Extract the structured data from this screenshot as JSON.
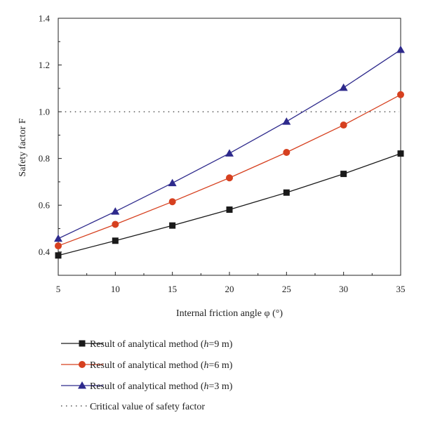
{
  "chart_data": {
    "type": "line",
    "xlabel": "Internal friction angle φ (°)",
    "ylabel": "Safety factor F",
    "xlim": [
      5,
      35
    ],
    "ylim": [
      0.3,
      1.4
    ],
    "xticks": [
      5,
      10,
      15,
      20,
      25,
      30,
      35
    ],
    "yticks": [
      0.4,
      0.6,
      0.8,
      1.0,
      1.2,
      1.4
    ],
    "ytick_labels": [
      "0.4",
      "0.6",
      "0.8",
      "1.0",
      "1.2",
      "1.4"
    ],
    "x": [
      5,
      10,
      15,
      20,
      25,
      30,
      35
    ],
    "series": [
      {
        "name_prefix": "Result of analytical method (",
        "name_var": "h",
        "name_suffix": "=9 m)",
        "color": "#1a1a1a",
        "marker": "square",
        "values": [
          0.385,
          0.448,
          0.513,
          0.581,
          0.654,
          0.734,
          0.821
        ]
      },
      {
        "name_prefix": "Result of analytical method (",
        "name_var": "h",
        "name_suffix": "=6 m)",
        "color": "#d6401f",
        "marker": "circle",
        "values": [
          0.426,
          0.518,
          0.615,
          0.717,
          0.826,
          0.943,
          1.073
        ]
      },
      {
        "name_prefix": "Result of analytical method (",
        "name_var": "h",
        "name_suffix": "=3 m)",
        "color": "#2e2a8c",
        "marker": "triangle",
        "values": [
          0.457,
          0.573,
          0.695,
          0.822,
          0.958,
          1.103,
          1.265
        ]
      }
    ],
    "reference_line": {
      "name": "Critical value of safety factor",
      "y": 1.0,
      "style": "dotted",
      "color": "#333333"
    },
    "grid": false,
    "legend_placement": "bottom"
  }
}
